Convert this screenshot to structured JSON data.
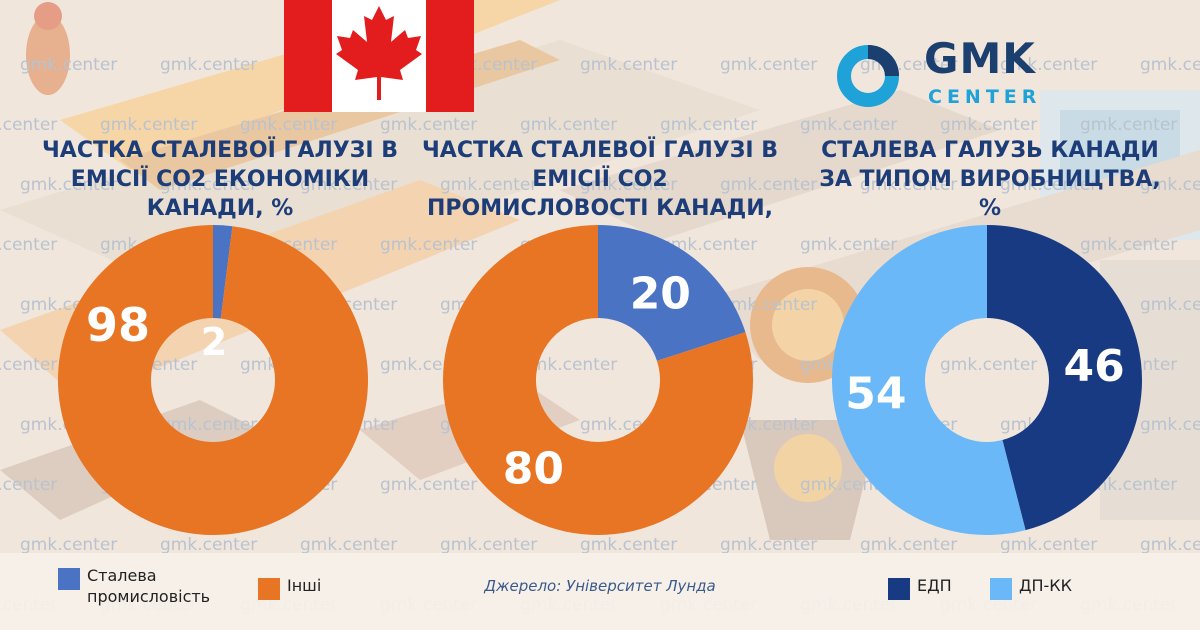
{
  "brand": {
    "logo_word": "GMK",
    "logo_sub": "CENTER",
    "watermark": "gmk.center",
    "colors": {
      "navy": "#1b3f6e",
      "cyan": "#1ea2d8"
    }
  },
  "flag": {
    "country": "Canada",
    "icon": "maple-leaf-icon"
  },
  "chart_data": [
    {
      "type": "pie",
      "style": "donut",
      "title": "Частка сталевої галузі в емісії CO2 економіки Канади, %",
      "categories": [
        "Сталева промисловість",
        "Інші"
      ],
      "values": [
        2,
        98
      ],
      "colors": [
        "#4b73c4",
        "#e87524"
      ],
      "data_labels": [
        "2",
        "98"
      ]
    },
    {
      "type": "pie",
      "style": "donut",
      "title": "Частка сталевої галузі в емісії CO2 промисловості Канади, %",
      "categories": [
        "Сталева промисловість",
        "Інші"
      ],
      "values": [
        20,
        80
      ],
      "colors": [
        "#4b73c4",
        "#e87524"
      ],
      "data_labels": [
        "20",
        "80"
      ]
    },
    {
      "type": "pie",
      "style": "donut",
      "title": "Сталева галузь Канади за типом виробництва, %",
      "categories": [
        "ЕДП",
        "ДП-КК"
      ],
      "values": [
        46,
        54
      ],
      "colors": [
        "#173a82",
        "#6ab8f7"
      ],
      "data_labels": [
        "46",
        "54"
      ]
    }
  ],
  "legend": [
    {
      "label": "Сталева промисловість",
      "color": "#4b73c4"
    },
    {
      "label": "Інші",
      "color": "#e87524"
    },
    {
      "label": "ЕДП",
      "color": "#173a82"
    },
    {
      "label": "ДП-КК",
      "color": "#6ab8f7"
    }
  ],
  "source": "Джерело:  Університет Лунда"
}
